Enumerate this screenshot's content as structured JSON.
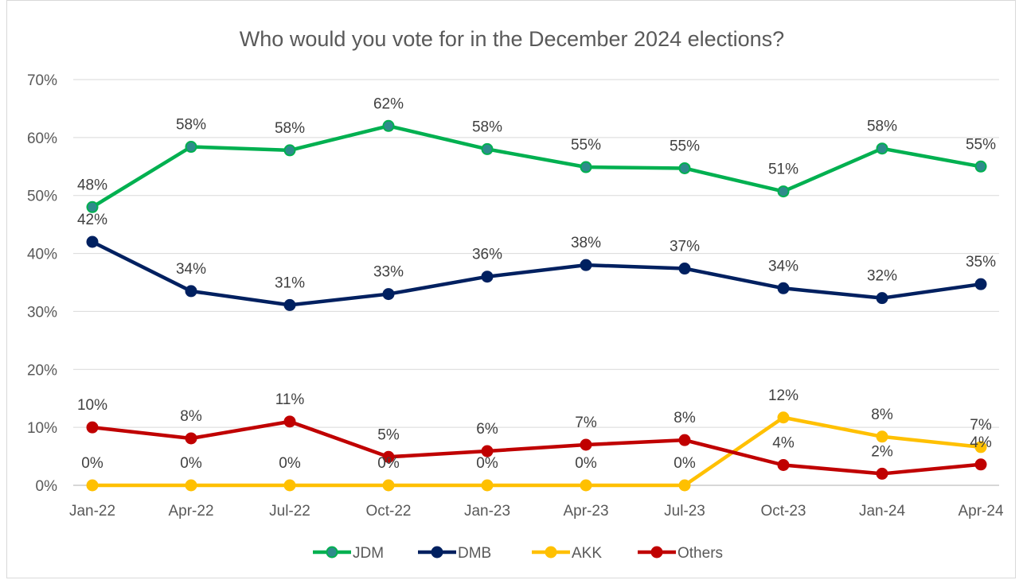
{
  "chart_data": {
    "type": "line",
    "title": "Who would you vote for in the December 2024 elections?",
    "xlabel": "",
    "ylabel": "",
    "categories": [
      "Jan-22",
      "Apr-22",
      "Jul-22",
      "Oct-22",
      "Jan-23",
      "Apr-23",
      "Jul-23",
      "Oct-23",
      "Jan-24",
      "Apr-24"
    ],
    "ylim": [
      0,
      0.7
    ],
    "yticks": [
      0,
      0.1,
      0.2,
      0.3,
      0.4,
      0.5,
      0.6,
      0.7
    ],
    "ytick_labels": [
      "0%",
      "10%",
      "20%",
      "30%",
      "40%",
      "50%",
      "60%",
      "70%"
    ],
    "grid": true,
    "legend_position": "bottom",
    "series": [
      {
        "name": "JDM",
        "color": "#00b050",
        "marker_fill": "#2e8b8b",
        "values": [
          0.48,
          0.584,
          0.578,
          0.62,
          0.58,
          0.549,
          0.547,
          0.507,
          0.581,
          0.55
        ],
        "labels": [
          "48%",
          "58%",
          "58%",
          "62%",
          "58%",
          "55%",
          "55%",
          "51%",
          "58%",
          "55%"
        ]
      },
      {
        "name": "DMB",
        "color": "#002060",
        "marker_fill": "#002060",
        "values": [
          0.42,
          0.335,
          0.311,
          0.33,
          0.36,
          0.38,
          0.374,
          0.34,
          0.323,
          0.347
        ],
        "labels": [
          "42%",
          "34%",
          "31%",
          "33%",
          "36%",
          "38%",
          "37%",
          "34%",
          "32%",
          "35%"
        ]
      },
      {
        "name": "AKK",
        "color": "#ffc000",
        "marker_fill": "#ffc000",
        "values": [
          0,
          0,
          0,
          0,
          0,
          0,
          0,
          0.117,
          0.084,
          0.066
        ],
        "labels": [
          "0%",
          "0%",
          "0%",
          "0%",
          "0%",
          "0%",
          "0%",
          "12%",
          "8%",
          "7%"
        ]
      },
      {
        "name": "Others",
        "color": "#c00000",
        "marker_fill": "#c00000",
        "values": [
          0.1,
          0.081,
          0.11,
          0.049,
          0.059,
          0.07,
          0.078,
          0.035,
          0.02,
          0.036
        ],
        "labels": [
          "10%",
          "8%",
          "11%",
          "5%",
          "6%",
          "7%",
          "8%",
          "4%",
          "2%",
          "4%"
        ]
      }
    ]
  }
}
